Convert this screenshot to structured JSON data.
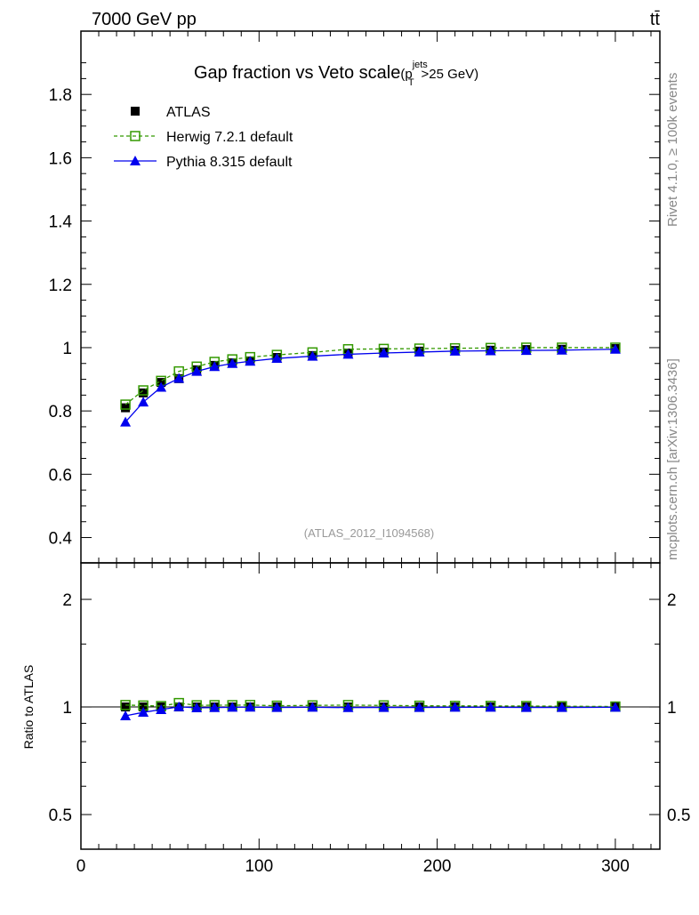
{
  "chart_data": {
    "type": "scatter",
    "title": "Gap fraction vs Veto scale",
    "title_suffix": "(p",
    "title_sup": "jets",
    "title_sub": "T",
    "title_tail": ">25 GeV)",
    "top_left": "7000 GeV pp",
    "top_right": "tt̄",
    "side_label_1": "Rivet 4.1.0, ≥ 100k events",
    "side_label_2": "mcplots.cern.ch [arXiv:1306.3436]",
    "analysis_label": "(ATLAS_2012_I1094568)",
    "ratio_ylabel": "Ratio to ATLAS",
    "xlim": [
      0,
      325
    ],
    "ylim": [
      0.32,
      2.0
    ],
    "ratio_ylim": [
      0.4,
      2.53
    ],
    "xticks": [
      0,
      100,
      200,
      300
    ],
    "yticks": [
      0.4,
      0.6,
      0.8,
      1,
      1.2,
      1.4,
      1.6,
      1.8
    ],
    "ratio_yticks": [
      0.5,
      1,
      2
    ],
    "x": [
      25,
      35,
      45,
      55,
      65,
      75,
      85,
      95,
      110,
      130,
      150,
      170,
      190,
      210,
      230,
      250,
      270,
      300
    ],
    "series": [
      {
        "name": "ATLAS",
        "color": "#000000",
        "values": [
          0.81,
          0.857,
          0.89,
          0.902,
          0.93,
          0.944,
          0.952,
          0.958,
          0.969,
          0.975,
          0.983,
          0.986,
          0.989,
          0.991,
          0.992,
          0.994,
          0.995,
          0.997
        ]
      },
      {
        "name": "Herwig 7.2.1 default",
        "color": "#339900",
        "values": [
          0.82,
          0.865,
          0.895,
          0.925,
          0.94,
          0.955,
          0.963,
          0.97,
          0.977,
          0.985,
          0.995,
          0.996,
          0.997,
          0.998,
          0.999,
          1.0,
          1.0,
          1.0
        ]
      },
      {
        "name": "Pythia 8.315 default",
        "color": "#0000ee",
        "values": [
          0.765,
          0.828,
          0.875,
          0.903,
          0.925,
          0.94,
          0.95,
          0.957,
          0.966,
          0.973,
          0.979,
          0.983,
          0.986,
          0.989,
          0.99,
          0.991,
          0.992,
          0.995
        ]
      }
    ]
  }
}
